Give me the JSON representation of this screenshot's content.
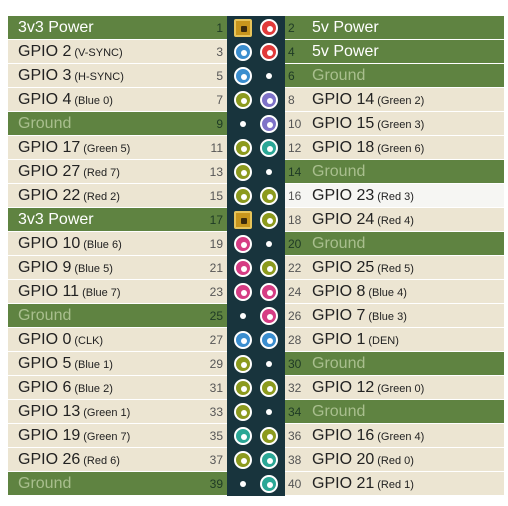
{
  "colors": {
    "green": "#5f8341",
    "cream": "#ece5d2",
    "text_dark": "#222222",
    "text_light": "#ffffff",
    "text_ground": "#a9bf8e",
    "num_dark": "#555555",
    "num_light": "#1e3a25",
    "board": "#18343d",
    "highlight": "#f6f6f3"
  },
  "pin_colors": {
    "power3v3": "#c8961d",
    "power5v": "#e13a3a",
    "ground": "#ffffff",
    "sda": "#3b8ecf",
    "gpio": "#8c9a1e",
    "spi": "#d63c84",
    "uart": "#7e72c8",
    "pcm": "#2ba796"
  },
  "rows": [
    {
      "left": {
        "num": "1",
        "name": "3v3 Power",
        "sub": "",
        "style": "power",
        "pin": "power3v3"
      },
      "right": {
        "num": "2",
        "name": "5v Power",
        "sub": "",
        "style": "power",
        "pin": "power5v"
      }
    },
    {
      "left": {
        "num": "3",
        "name": "GPIO 2",
        "sub": "(V-SYNC)",
        "style": "normal",
        "pin": "sda"
      },
      "right": {
        "num": "4",
        "name": "5v Power",
        "sub": "",
        "style": "power",
        "pin": "power5v"
      }
    },
    {
      "left": {
        "num": "5",
        "name": "GPIO 3",
        "sub": "(H-SYNC)",
        "style": "normal",
        "pin": "sda"
      },
      "right": {
        "num": "6",
        "name": "Ground",
        "sub": "",
        "style": "ground",
        "pin": "ground"
      }
    },
    {
      "left": {
        "num": "7",
        "name": "GPIO 4",
        "sub": "(Blue 0)",
        "style": "normal",
        "pin": "gpio"
      },
      "right": {
        "num": "8",
        "name": "GPIO 14",
        "sub": "(Green 2)",
        "style": "normal",
        "pin": "uart"
      }
    },
    {
      "left": {
        "num": "9",
        "name": "Ground",
        "sub": "",
        "style": "ground",
        "pin": "ground"
      },
      "right": {
        "num": "10",
        "name": "GPIO 15",
        "sub": "(Green 3)",
        "style": "normal",
        "pin": "uart"
      }
    },
    {
      "left": {
        "num": "11",
        "name": "GPIO 17",
        "sub": "(Green 5)",
        "style": "normal",
        "pin": "gpio"
      },
      "right": {
        "num": "12",
        "name": "GPIO 18",
        "sub": "(Green 6)",
        "style": "normal",
        "pin": "pcm"
      }
    },
    {
      "left": {
        "num": "13",
        "name": "GPIO 27",
        "sub": "(Red 7)",
        "style": "normal",
        "pin": "gpio"
      },
      "right": {
        "num": "14",
        "name": "Ground",
        "sub": "",
        "style": "ground",
        "pin": "ground"
      }
    },
    {
      "left": {
        "num": "15",
        "name": "GPIO 22",
        "sub": "(Red 2)",
        "style": "normal",
        "pin": "gpio"
      },
      "right": {
        "num": "16",
        "name": "GPIO 23",
        "sub": "(Red 3)",
        "style": "highlight",
        "pin": "gpio"
      }
    },
    {
      "left": {
        "num": "17",
        "name": "3v3 Power",
        "sub": "",
        "style": "power",
        "pin": "power3v3"
      },
      "right": {
        "num": "18",
        "name": "GPIO 24",
        "sub": "(Red 4)",
        "style": "normal",
        "pin": "gpio"
      }
    },
    {
      "left": {
        "num": "19",
        "name": "GPIO 10",
        "sub": "(Blue 6)",
        "style": "normal",
        "pin": "spi"
      },
      "right": {
        "num": "20",
        "name": "Ground",
        "sub": "",
        "style": "ground",
        "pin": "ground"
      }
    },
    {
      "left": {
        "num": "21",
        "name": "GPIO 9",
        "sub": "(Blue 5)",
        "style": "normal",
        "pin": "spi"
      },
      "right": {
        "num": "22",
        "name": "GPIO 25",
        "sub": "(Red 5)",
        "style": "normal",
        "pin": "gpio"
      }
    },
    {
      "left": {
        "num": "23",
        "name": "GPIO 11",
        "sub": "(Blue 7)",
        "style": "normal",
        "pin": "spi"
      },
      "right": {
        "num": "24",
        "name": "GPIO 8",
        "sub": "(Blue 4)",
        "style": "normal",
        "pin": "spi"
      }
    },
    {
      "left": {
        "num": "25",
        "name": "Ground",
        "sub": "",
        "style": "ground",
        "pin": "ground"
      },
      "right": {
        "num": "26",
        "name": "GPIO 7",
        "sub": "(Blue 3)",
        "style": "normal",
        "pin": "spi"
      }
    },
    {
      "left": {
        "num": "27",
        "name": "GPIO 0",
        "sub": "(CLK)",
        "style": "normal",
        "pin": "sda"
      },
      "right": {
        "num": "28",
        "name": "GPIO 1",
        "sub": "(DEN)",
        "style": "normal",
        "pin": "sda"
      }
    },
    {
      "left": {
        "num": "29",
        "name": "GPIO 5",
        "sub": "(Blue 1)",
        "style": "normal",
        "pin": "gpio"
      },
      "right": {
        "num": "30",
        "name": "Ground",
        "sub": "",
        "style": "ground",
        "pin": "ground"
      }
    },
    {
      "left": {
        "num": "31",
        "name": "GPIO 6",
        "sub": "(Blue 2)",
        "style": "normal",
        "pin": "gpio"
      },
      "right": {
        "num": "32",
        "name": "GPIO 12",
        "sub": "(Green 0)",
        "style": "normal",
        "pin": "gpio"
      }
    },
    {
      "left": {
        "num": "33",
        "name": "GPIO 13",
        "sub": "(Green 1)",
        "style": "normal",
        "pin": "gpio"
      },
      "right": {
        "num": "34",
        "name": "Ground",
        "sub": "",
        "style": "ground",
        "pin": "ground"
      }
    },
    {
      "left": {
        "num": "35",
        "name": "GPIO 19",
        "sub": "(Green 7)",
        "style": "normal",
        "pin": "pcm"
      },
      "right": {
        "num": "36",
        "name": "GPIO 16",
        "sub": "(Green 4)",
        "style": "normal",
        "pin": "gpio"
      }
    },
    {
      "left": {
        "num": "37",
        "name": "GPIO 26",
        "sub": "(Red 6)",
        "style": "normal",
        "pin": "gpio"
      },
      "right": {
        "num": "38",
        "name": "GPIO 20",
        "sub": "(Red 0)",
        "style": "normal",
        "pin": "pcm"
      }
    },
    {
      "left": {
        "num": "39",
        "name": "Ground",
        "sub": "",
        "style": "ground",
        "pin": "ground"
      },
      "right": {
        "num": "40",
        "name": "GPIO 21",
        "sub": "(Red 1)",
        "style": "normal",
        "pin": "pcm"
      }
    }
  ]
}
